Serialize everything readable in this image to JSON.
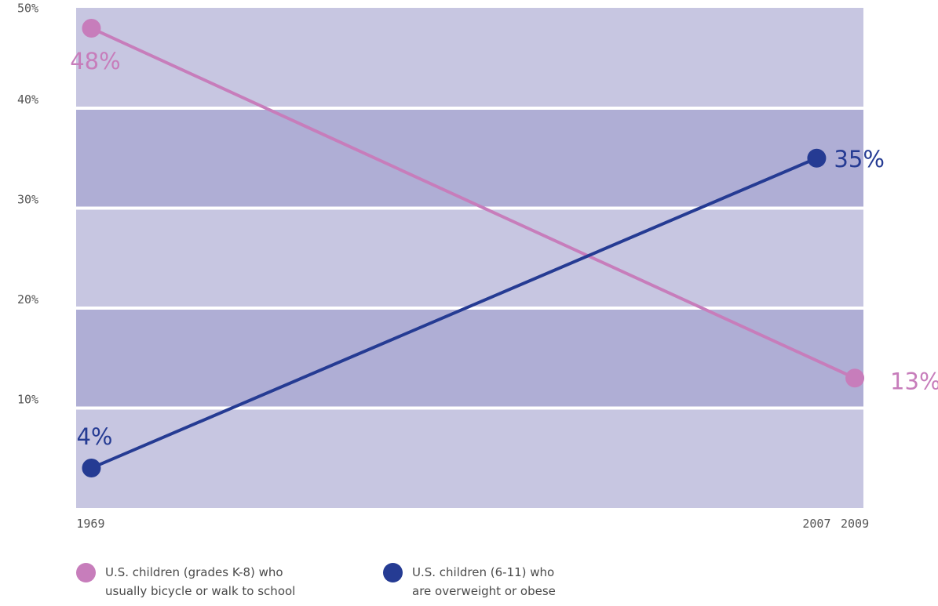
{
  "chart_data": {
    "type": "line",
    "title": "",
    "xlabel": "",
    "ylabel": "",
    "x": [
      1969,
      2007,
      2009
    ],
    "x_tick_labels": [
      "1969",
      "2007",
      "2009"
    ],
    "ylim": [
      0,
      50
    ],
    "y_tick_labels": [
      "10%",
      "20%",
      "30%",
      "40%",
      "50%"
    ],
    "y_ticks": [
      10,
      20,
      30,
      40,
      50
    ],
    "grid": "alternating horizontal bands",
    "legend_position": "bottom",
    "colors": {
      "band_light": "#c7c6e1",
      "band_dark": "#afaed5"
    },
    "series": [
      {
        "name": "U.S. children (grades K-8) who usually bicycle or walk to school",
        "color": "#c77dbb",
        "points": [
          {
            "x": 1969,
            "y": 48,
            "label": "48%"
          },
          {
            "x": 2009,
            "y": 13,
            "label": "13%"
          }
        ]
      },
      {
        "name": "U.S. children (6-11) who are overweight or obese",
        "color": "#253b93",
        "points": [
          {
            "x": 1969,
            "y": 4,
            "label": "4%"
          },
          {
            "x": 2007,
            "y": 35,
            "label": "35%"
          }
        ]
      }
    ]
  },
  "legend": {
    "items": [
      {
        "line1": "U.S. children (grades K-8) who",
        "line2": "usually bicycle or walk to school",
        "color": "#c77dbb"
      },
      {
        "line1": "U.S. children (6-11) who",
        "line2": "are overweight or obese",
        "color": "#253b93"
      }
    ]
  }
}
